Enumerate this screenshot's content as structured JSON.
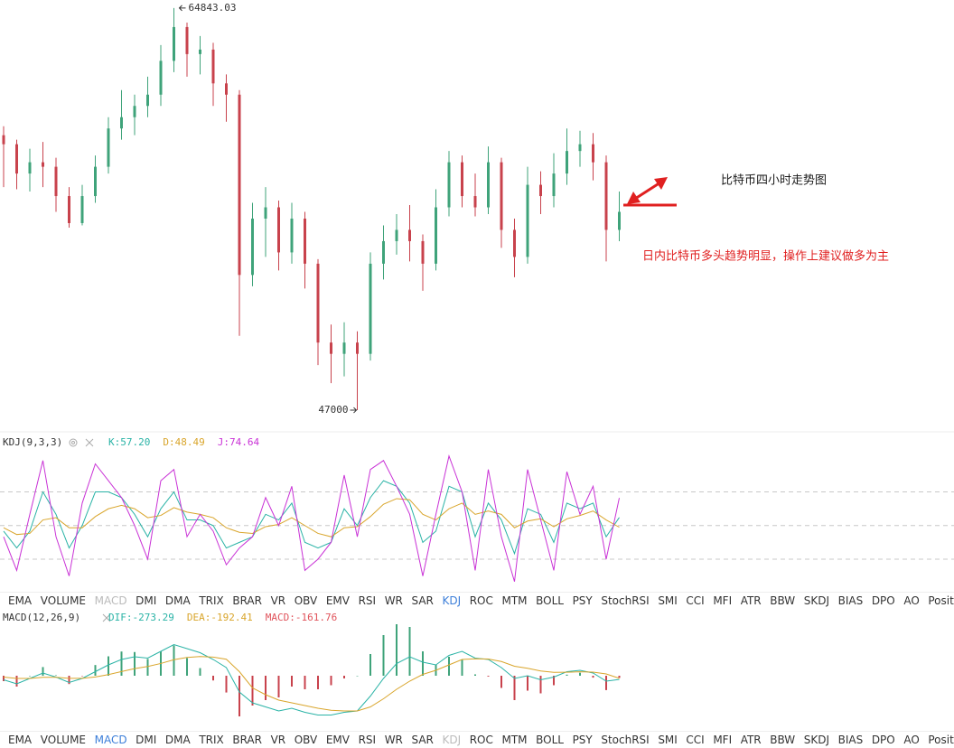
{
  "chart_data": [
    {
      "type": "ohlc",
      "up_color": "#3fa37a",
      "down_color": "#c8424c",
      "ylim": [
        46040,
        65200
      ],
      "open": [
        59200,
        58800,
        57500,
        58000,
        57800,
        56500,
        55300,
        56500,
        57800,
        59500,
        60000,
        60500,
        61000,
        62500,
        64000,
        62800,
        63000,
        61500,
        61000,
        53000,
        55500,
        56000,
        54000,
        55500,
        53500,
        50000,
        49500,
        50000,
        49500,
        53500,
        54500,
        55000,
        54500,
        53500,
        56000,
        58000,
        56500,
        56000,
        58000,
        55000,
        53800,
        57000,
        56500,
        57500,
        58500,
        58800,
        58000,
        55000
      ],
      "high": [
        59600,
        59000,
        58600,
        58900,
        58200,
        56900,
        57000,
        58300,
        60000,
        61200,
        61000,
        61800,
        63200,
        64843.03,
        64200,
        63600,
        63300,
        61900,
        61200,
        56200,
        56900,
        56300,
        56200,
        55800,
        53700,
        50800,
        50900,
        50500,
        54000,
        55200,
        55700,
        56100,
        54800,
        56800,
        58500,
        58300,
        57500,
        58700,
        58200,
        55500,
        57800,
        57600,
        58400,
        59500,
        59400,
        59300,
        58300,
        56700
      ],
      "low": [
        56900,
        56800,
        56700,
        56900,
        55800,
        55100,
        55200,
        56200,
        57500,
        59000,
        59200,
        60000,
        60500,
        62000,
        61800,
        61900,
        60500,
        59800,
        50300,
        52500,
        53800,
        53200,
        53500,
        52400,
        49000,
        48200,
        48500,
        47000,
        49200,
        52800,
        53900,
        53600,
        52300,
        53200,
        55600,
        56000,
        55600,
        55700,
        54200,
        52900,
        53500,
        55700,
        56000,
        57000,
        57800,
        57200,
        53600,
        54500
      ],
      "close": [
        58800,
        57500,
        58000,
        57800,
        56500,
        55300,
        56500,
        57800,
        59500,
        60000,
        60500,
        61000,
        62500,
        64000,
        62800,
        63000,
        61500,
        61000,
        53000,
        55500,
        56000,
        54000,
        55500,
        53500,
        50000,
        49500,
        50000,
        49500,
        53500,
        54500,
        55000,
        54500,
        53500,
        56000,
        58000,
        56500,
        56000,
        58000,
        55000,
        53800,
        57000,
        56500,
        57500,
        58500,
        58800,
        58000,
        55000,
        55800
      ],
      "annotations": [
        {
          "text": "比特币四小时走势图",
          "color": "#1a1a1a"
        },
        {
          "text": "日内比特币多头趋势明显，操作上建议做多为主",
          "color": "#e02020"
        }
      ]
    },
    {
      "type": "line",
      "title": "KDJ(9,3,3)",
      "ylim": [
        -5,
        132
      ],
      "yticks": [
        20,
        50,
        80
      ],
      "grid": "dashed",
      "series": [
        {
          "label": "K:57.20",
          "color": "#2ab3a6",
          "values": [
            45,
            30,
            45,
            80,
            60,
            30,
            50,
            80,
            80,
            75,
            60,
            40,
            65,
            80,
            55,
            55,
            50,
            30,
            35,
            40,
            60,
            55,
            70,
            35,
            30,
            35,
            65,
            50,
            75,
            90,
            85,
            70,
            35,
            45,
            85,
            80,
            40,
            70,
            55,
            25,
            65,
            60,
            35,
            70,
            65,
            70,
            40,
            57.2
          ]
        },
        {
          "label": "D:48.49",
          "color": "#d9a52b",
          "values": [
            48,
            42,
            43,
            55,
            57,
            48,
            48,
            58,
            65,
            68,
            65,
            57,
            59,
            66,
            62,
            60,
            57,
            48,
            44,
            43,
            49,
            51,
            57,
            50,
            43,
            40,
            48,
            49,
            58,
            69,
            74,
            73,
            60,
            55,
            65,
            70,
            60,
            63,
            60,
            48,
            54,
            56,
            49,
            56,
            59,
            63,
            55,
            48.49
          ]
        },
        {
          "label": "J:74.64",
          "color": "#c932d6",
          "values": [
            40,
            10,
            60,
            108,
            40,
            5,
            70,
            105,
            90,
            75,
            50,
            20,
            90,
            100,
            40,
            60,
            45,
            15,
            30,
            40,
            75,
            50,
            85,
            10,
            20,
            35,
            95,
            40,
            100,
            108,
            85,
            60,
            5,
            60,
            112,
            80,
            10,
            100,
            40,
            0,
            100,
            55,
            10,
            98,
            60,
            85,
            20,
            74.64
          ]
        }
      ]
    },
    {
      "type": "combo",
      "title": "MACD(12,26,9)",
      "ylim": [
        -4000,
        4000
      ],
      "up_color": "#3fa37a",
      "down_color": "#c8424c",
      "series": [
        {
          "label": "DIF:-273.29",
          "type": "line",
          "color": "#2ab3a6",
          "values": [
            -300,
            -600,
            -200,
            200,
            -100,
            -500,
            -200,
            300,
            800,
            1200,
            1400,
            1300,
            1800,
            2300,
            2000,
            1700,
            1200,
            600,
            -1200,
            -2000,
            -2300,
            -2600,
            -2400,
            -2700,
            -2900,
            -2900,
            -2700,
            -2600,
            -1500,
            -200,
            900,
            1400,
            1000,
            800,
            1500,
            1800,
            1300,
            1200,
            600,
            -200,
            0,
            -300,
            -100,
            300,
            400,
            200,
            -400,
            -273.29
          ]
        },
        {
          "label": "DEA:-192.41",
          "type": "line",
          "color": "#d9a52b",
          "values": [
            -100,
            -200,
            -200,
            -120,
            -116,
            -193,
            -194,
            -95,
            84,
            307,
            526,
            681,
            905,
            1184,
            1347,
            1418,
            1374,
            1219,
            300,
            -900,
            -1400,
            -1800,
            -2000,
            -2200,
            -2400,
            -2550,
            -2600,
            -2600,
            -2300,
            -1700,
            -1000,
            -400,
            100,
            400,
            800,
            1200,
            1250,
            1230,
            1050,
            700,
            550,
            350,
            250,
            260,
            290,
            270,
            130,
            -192.41
          ]
        },
        {
          "label": "MACD:-161.76",
          "type": "bar",
          "color": "#e0525a",
          "values": [
            -400,
            -800,
            0,
            640,
            32,
            -614,
            -12,
            790,
            1432,
            1786,
            1748,
            1238,
            1790,
            2232,
            1306,
            564,
            -348,
            -1238,
            -3000,
            -2200,
            -1800,
            -1600,
            -800,
            -1000,
            -1000,
            -700,
            -200,
            0,
            1600,
            3000,
            3800,
            3600,
            1800,
            800,
            1400,
            1200,
            100,
            -60,
            -900,
            -1800,
            -1100,
            -1300,
            -700,
            80,
            220,
            -140,
            -1060,
            -161.76
          ]
        }
      ]
    }
  ],
  "toolbars": [
    {
      "items": [
        "EMA",
        "VOLUME",
        "MACD",
        "DMI",
        "DMA",
        "TRIX",
        "BRAR",
        "VR",
        "OBV",
        "EMV",
        "RSI",
        "WR",
        "SAR",
        "KDJ",
        "ROC",
        "MTM",
        "BOLL",
        "PSY",
        "StochRSI",
        "SMI",
        "CCI",
        "MFI",
        "ATR",
        "BBW",
        "SKDJ",
        "BIAS",
        "DPO",
        "AO",
        "Position"
      ],
      "active": 13,
      "muted": 2
    },
    {
      "items": [
        "EMA",
        "VOLUME",
        "MACD",
        "DMI",
        "DMA",
        "TRIX",
        "BRAR",
        "VR",
        "OBV",
        "EMV",
        "RSI",
        "WR",
        "SAR",
        "KDJ",
        "ROC",
        "MTM",
        "BOLL",
        "PSY",
        "StochRSI",
        "SMI",
        "CCI",
        "MFI",
        "ATR",
        "BBW",
        "SKDJ",
        "BIAS",
        "DPO",
        "AO",
        "Position"
      ],
      "active": 2,
      "muted": 13
    }
  ]
}
